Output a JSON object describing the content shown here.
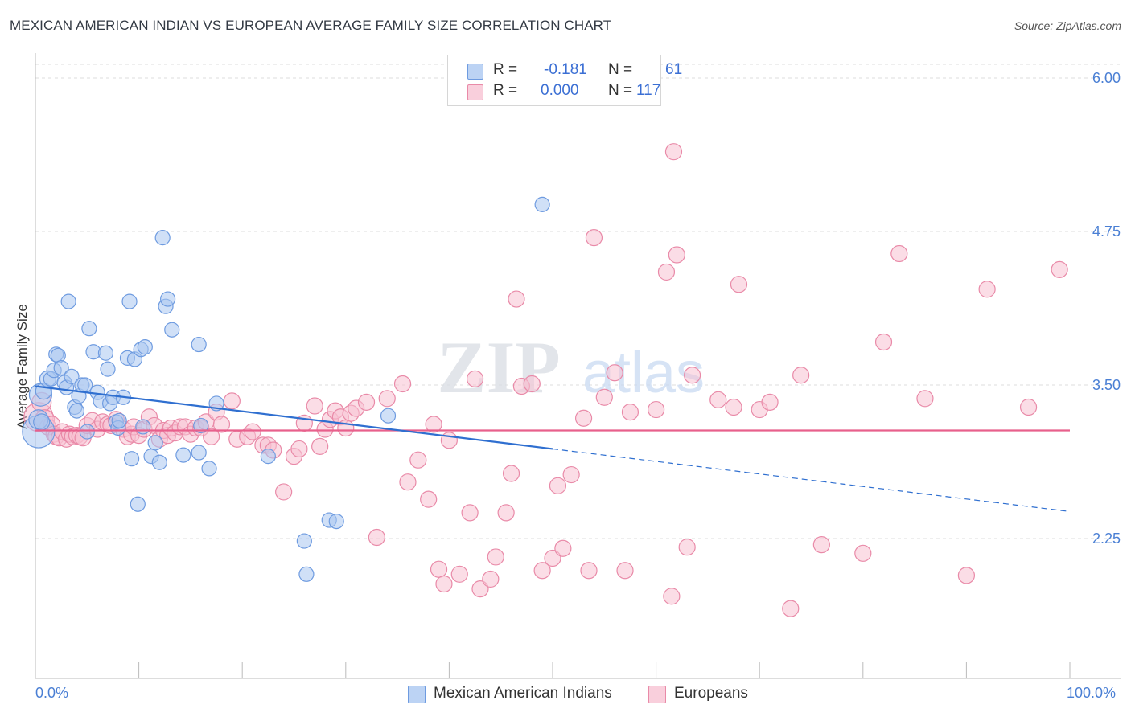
{
  "title": "MEXICAN AMERICAN INDIAN VS EUROPEAN AVERAGE FAMILY SIZE CORRELATION CHART",
  "source": "Source: ZipAtlas.com",
  "watermark": {
    "zip": "ZIP",
    "atlas": "atlas"
  },
  "legend": {
    "r_label": "R =",
    "n_label": "N =",
    "rows": [
      {
        "r": "-0.181",
        "n": "61"
      },
      {
        "r": "0.000",
        "n": "117"
      }
    ]
  },
  "series_labels": [
    "Mexican American Indians",
    "Europeans"
  ],
  "colors": {
    "blue_fill": "#a9c6f0",
    "blue_stroke": "#6e9be0",
    "blue_line": "#2f6fd0",
    "pink_fill": "#f7c1d1",
    "pink_stroke": "#e98aa8",
    "pink_line": "#e8608c",
    "grid": "#dddddd",
    "axis_text": "#4a7fd4"
  },
  "chart_data": {
    "type": "scatter",
    "title": "MEXICAN AMERICAN INDIAN VS EUROPEAN AVERAGE FAMILY SIZE CORRELATION CHART",
    "xlabel": "",
    "ylabel": "Average Family Size",
    "xlim": [
      0,
      100
    ],
    "ylim": [
      1.25,
      6.2
    ],
    "x_tick_labels": [
      "0.0%",
      "100.0%"
    ],
    "y_ticks": [
      2.25,
      3.5,
      4.75,
      6.0
    ],
    "y_tick_labels": [
      "2.25",
      "3.50",
      "4.75",
      "6.00"
    ],
    "series": [
      {
        "name": "Mexican American Indians",
        "r": -0.181,
        "n": 61,
        "trend": {
          "x0": 0,
          "y0": 3.49,
          "x1": 100,
          "y1": 2.47,
          "solid_until": 50
        },
        "points": [
          [
            0.3,
            3.12,
            20
          ],
          [
            0.3,
            3.22,
            12
          ],
          [
            0.5,
            3.42,
            14
          ],
          [
            0.8,
            3.45,
            10
          ],
          [
            1.2,
            3.55,
            10
          ],
          [
            1.5,
            3.55,
            9
          ],
          [
            1.8,
            3.62,
            9
          ],
          [
            2.0,
            3.75,
            9
          ],
          [
            2.2,
            3.74,
            9
          ],
          [
            2.5,
            3.64,
            9
          ],
          [
            2.8,
            3.52,
            9
          ],
          [
            3.0,
            3.48,
            9
          ],
          [
            3.2,
            4.18,
            9
          ],
          [
            3.5,
            3.57,
            9
          ],
          [
            3.8,
            3.32,
            9
          ],
          [
            4.0,
            3.29,
            9
          ],
          [
            4.2,
            3.41,
            9
          ],
          [
            4.5,
            3.5,
            9
          ],
          [
            4.8,
            3.5,
            9
          ],
          [
            5.0,
            3.12,
            9
          ],
          [
            5.2,
            3.96,
            9
          ],
          [
            5.6,
            3.77,
            9
          ],
          [
            6.0,
            3.44,
            9
          ],
          [
            6.3,
            3.37,
            9
          ],
          [
            6.8,
            3.76,
            9
          ],
          [
            7.0,
            3.63,
            9
          ],
          [
            7.2,
            3.35,
            9
          ],
          [
            7.5,
            3.4,
            9
          ],
          [
            7.8,
            3.2,
            9
          ],
          [
            8.0,
            3.15,
            9
          ],
          [
            8.1,
            3.21,
            9
          ],
          [
            8.5,
            3.4,
            9
          ],
          [
            8.9,
            3.72,
            9
          ],
          [
            9.1,
            4.18,
            9
          ],
          [
            9.3,
            2.9,
            9
          ],
          [
            9.6,
            3.71,
            9
          ],
          [
            9.9,
            2.53,
            9
          ],
          [
            10.2,
            3.79,
            9
          ],
          [
            10.4,
            3.16,
            9
          ],
          [
            10.6,
            3.81,
            9
          ],
          [
            11.2,
            2.92,
            9
          ],
          [
            11.6,
            3.03,
            9
          ],
          [
            12.0,
            2.87,
            9
          ],
          [
            12.3,
            4.7,
            9
          ],
          [
            12.6,
            4.14,
            9
          ],
          [
            12.8,
            4.2,
            9
          ],
          [
            13.2,
            3.95,
            9
          ],
          [
            14.3,
            2.93,
            9
          ],
          [
            15.8,
            2.95,
            9
          ],
          [
            16.0,
            3.17,
            9
          ],
          [
            16.8,
            2.82,
            9
          ],
          [
            17.5,
            3.35,
            9
          ],
          [
            15.8,
            3.83,
            9
          ],
          [
            22.5,
            2.92,
            9
          ],
          [
            26.0,
            2.23,
            9
          ],
          [
            26.2,
            1.96,
            9
          ],
          [
            28.4,
            2.4,
            9
          ],
          [
            29.1,
            2.39,
            9
          ],
          [
            34.1,
            3.25,
            9
          ],
          [
            49.0,
            4.97,
            9
          ],
          [
            0.6,
            3.2,
            10
          ]
        ]
      },
      {
        "name": "Europeans",
        "r": 0.0,
        "n": 117,
        "trend": {
          "x0": 0,
          "y0": 3.13,
          "x1": 100,
          "y1": 3.13,
          "solid_until": 100
        },
        "points": [
          [
            0.3,
            3.24,
            18
          ],
          [
            0.6,
            3.36,
            12
          ],
          [
            0.9,
            3.22,
            12
          ],
          [
            1.2,
            3.16,
            10
          ],
          [
            1.6,
            3.18,
            10
          ],
          [
            1.8,
            3.1,
            10
          ],
          [
            2.0,
            3.08,
            10
          ],
          [
            2.3,
            3.07,
            10
          ],
          [
            2.6,
            3.12,
            10
          ],
          [
            3.0,
            3.06,
            10
          ],
          [
            3.3,
            3.1,
            10
          ],
          [
            3.6,
            3.08,
            10
          ],
          [
            4.0,
            3.09,
            10
          ],
          [
            4.3,
            3.08,
            10
          ],
          [
            4.6,
            3.07,
            10
          ],
          [
            5.0,
            3.17,
            10
          ],
          [
            5.5,
            3.21,
            10
          ],
          [
            6.0,
            3.14,
            10
          ],
          [
            6.5,
            3.2,
            10
          ],
          [
            7.0,
            3.18,
            10
          ],
          [
            7.3,
            3.17,
            10
          ],
          [
            7.8,
            3.22,
            10
          ],
          [
            8.5,
            3.14,
            10
          ],
          [
            8.9,
            3.08,
            10
          ],
          [
            9.3,
            3.1,
            10
          ],
          [
            9.5,
            3.16,
            10
          ],
          [
            10.0,
            3.09,
            10
          ],
          [
            10.5,
            3.14,
            10
          ],
          [
            11.0,
            3.24,
            10
          ],
          [
            11.5,
            3.17,
            10
          ],
          [
            12.0,
            3.06,
            10
          ],
          [
            12.4,
            3.13,
            10
          ],
          [
            12.8,
            3.09,
            10
          ],
          [
            13.1,
            3.15,
            10
          ],
          [
            13.5,
            3.11,
            10
          ],
          [
            14.0,
            3.16,
            10
          ],
          [
            14.5,
            3.16,
            10
          ],
          [
            15.0,
            3.1,
            10
          ],
          [
            15.5,
            3.15,
            10
          ],
          [
            16.0,
            3.15,
            10
          ],
          [
            16.5,
            3.2,
            10
          ],
          [
            17.0,
            3.08,
            10
          ],
          [
            17.5,
            3.28,
            10
          ],
          [
            18.0,
            3.18,
            10
          ],
          [
            19.0,
            3.37,
            10
          ],
          [
            19.5,
            3.06,
            10
          ],
          [
            20.5,
            3.08,
            10
          ],
          [
            21.0,
            3.12,
            10
          ],
          [
            22.0,
            3.01,
            10
          ],
          [
            22.5,
            3.01,
            10
          ],
          [
            23.0,
            2.97,
            10
          ],
          [
            24.0,
            2.63,
            10
          ],
          [
            25.0,
            2.92,
            10
          ],
          [
            25.5,
            2.98,
            10
          ],
          [
            26.0,
            3.19,
            10
          ],
          [
            27.0,
            3.33,
            10
          ],
          [
            27.5,
            3.0,
            10
          ],
          [
            28.0,
            3.14,
            10
          ],
          [
            28.5,
            3.22,
            10
          ],
          [
            29.0,
            3.29,
            10
          ],
          [
            29.5,
            3.24,
            10
          ],
          [
            30.0,
            3.15,
            10
          ],
          [
            30.5,
            3.27,
            10
          ],
          [
            31.0,
            3.31,
            10
          ],
          [
            32.0,
            3.36,
            10
          ],
          [
            33.0,
            2.26,
            10
          ],
          [
            34.0,
            3.39,
            10
          ],
          [
            35.5,
            3.51,
            10
          ],
          [
            36.0,
            2.71,
            10
          ],
          [
            37.0,
            2.89,
            10
          ],
          [
            38.0,
            2.57,
            10
          ],
          [
            38.5,
            3.18,
            10
          ],
          [
            39.0,
            2.0,
            10
          ],
          [
            39.5,
            1.88,
            10
          ],
          [
            40.0,
            3.05,
            10
          ],
          [
            41.0,
            1.96,
            10
          ],
          [
            42.0,
            2.46,
            10
          ],
          [
            42.5,
            3.55,
            10
          ],
          [
            43.0,
            1.84,
            10
          ],
          [
            44.0,
            1.92,
            10
          ],
          [
            44.5,
            2.1,
            10
          ],
          [
            45.5,
            2.46,
            10
          ],
          [
            46.0,
            2.78,
            10
          ],
          [
            47.0,
            3.49,
            10
          ],
          [
            48.0,
            3.51,
            10
          ],
          [
            49.0,
            1.99,
            10
          ],
          [
            50.0,
            2.09,
            10
          ],
          [
            50.5,
            2.68,
            10
          ],
          [
            51.0,
            2.17,
            10
          ],
          [
            51.8,
            2.77,
            10
          ],
          [
            53.0,
            3.23,
            10
          ],
          [
            53.5,
            1.99,
            10
          ],
          [
            54.0,
            4.7,
            10
          ],
          [
            55.0,
            3.4,
            10
          ],
          [
            56.0,
            3.6,
            10
          ],
          [
            57.0,
            1.99,
            10
          ],
          [
            57.5,
            3.28,
            10
          ],
          [
            60.0,
            3.3,
            10
          ],
          [
            61.0,
            4.42,
            10
          ],
          [
            61.5,
            1.78,
            10
          ],
          [
            62.0,
            4.56,
            10
          ],
          [
            63.0,
            2.18,
            10
          ],
          [
            63.5,
            3.58,
            10
          ],
          [
            66.0,
            3.38,
            10
          ],
          [
            67.5,
            3.32,
            10
          ],
          [
            68.0,
            4.32,
            10
          ],
          [
            70.0,
            3.3,
            10
          ],
          [
            71.0,
            3.36,
            10
          ],
          [
            73.0,
            1.68,
            10
          ],
          [
            74.0,
            3.58,
            10
          ],
          [
            76.0,
            2.2,
            10
          ],
          [
            80.0,
            2.13,
            10
          ],
          [
            82.0,
            3.85,
            10
          ],
          [
            83.5,
            4.57,
            10
          ],
          [
            86.0,
            3.39,
            10
          ],
          [
            90.0,
            1.95,
            10
          ],
          [
            92.0,
            4.28,
            10
          ],
          [
            96.0,
            3.32,
            10
          ],
          [
            99.0,
            4.44,
            10
          ],
          [
            61.7,
            5.4,
            10
          ],
          [
            46.5,
            4.2,
            10
          ]
        ]
      }
    ]
  }
}
